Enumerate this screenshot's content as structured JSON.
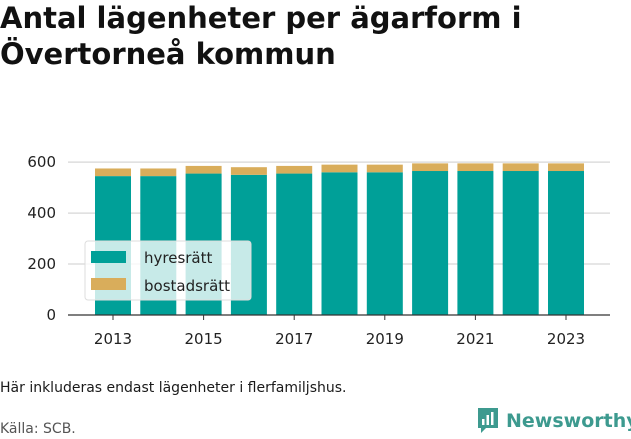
{
  "header": {
    "title": "Antal lägenheter per ägarform i Övertorneå kommun"
  },
  "footer": {
    "caption": "Här inkluderas endast lägenheter i flerfamiljshus.",
    "source": "Källa: SCB.",
    "brand": "Newsworthy"
  },
  "chart_data": {
    "type": "bar",
    "stacked": true,
    "categories": [
      "2013",
      "2014",
      "2015",
      "2016",
      "2017",
      "2018",
      "2019",
      "2020",
      "2021",
      "2022",
      "2023"
    ],
    "x_tick_labels": [
      "2013",
      "2015",
      "2017",
      "2019",
      "2021",
      "2023"
    ],
    "y_tick_labels": [
      "0",
      "200",
      "400",
      "600"
    ],
    "ylim": [
      0,
      620
    ],
    "grid": true,
    "legend_placement": "left",
    "series": [
      {
        "name": "hyresrätt",
        "color": "#00a098",
        "values": [
          545,
          545,
          555,
          550,
          555,
          560,
          560,
          565,
          565,
          565,
          565
        ]
      },
      {
        "name": "bostadsrätt",
        "color": "#d9ad5b",
        "values": [
          30,
          30,
          30,
          30,
          30,
          30,
          30,
          30,
          30,
          30,
          30
        ]
      }
    ]
  }
}
